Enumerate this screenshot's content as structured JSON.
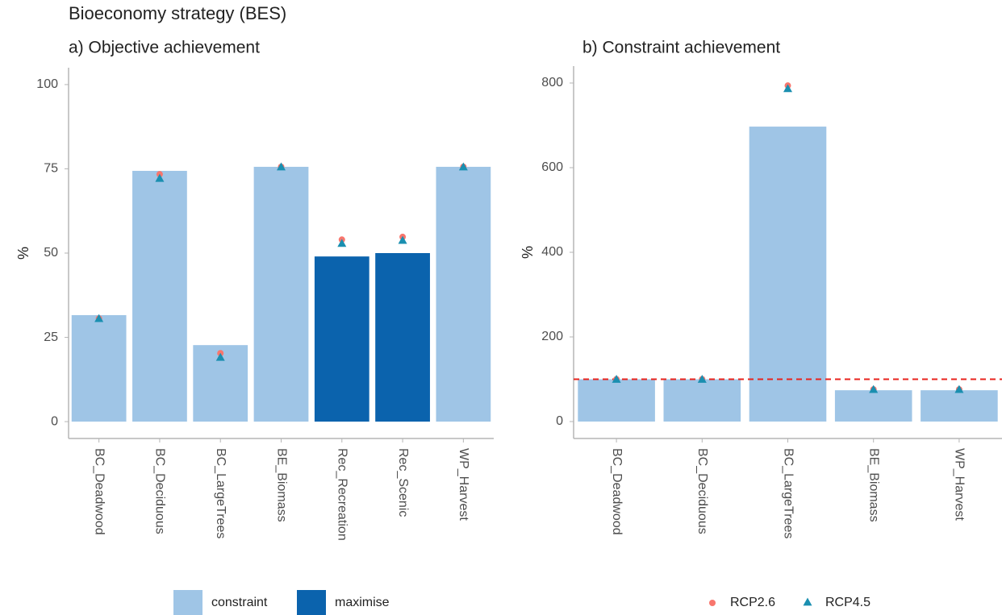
{
  "title": "Bioeconomy strategy (BES)",
  "chart_data": [
    {
      "type": "bar",
      "title": "a) Objective achievement",
      "ylabel": "%",
      "categories": [
        "BC_Deadwood",
        "BC_Deciduous",
        "BC_LargeTrees",
        "BE_Biomass",
        "Rec_Recreation",
        "Rec_Scenic",
        "WP_Harvest"
      ],
      "series": [
        {
          "name": "constraint",
          "color": "#9fc5e6",
          "values": [
            31.6,
            74.4,
            22.7,
            75.6,
            null,
            null,
            75.6
          ]
        },
        {
          "name": "maximise",
          "color": "#0b63ad",
          "values": [
            null,
            null,
            null,
            null,
            49,
            50,
            null
          ]
        }
      ],
      "points": [
        {
          "name": "RCP2.6",
          "color": "#f8766d",
          "marker": "circle",
          "values": [
            30.6,
            73.4,
            20.3,
            75.6,
            54,
            54.8,
            75.6
          ]
        },
        {
          "name": "RCP4.5",
          "color": "#1a8fb0",
          "marker": "triangle",
          "values": [
            30.6,
            72.2,
            19.1,
            75.6,
            52.9,
            53.8,
            75.6
          ]
        }
      ],
      "ylim": [
        -5,
        105
      ],
      "yticks": [
        0,
        25,
        50,
        75,
        100
      ],
      "grid": false,
      "legend": "series"
    },
    {
      "type": "bar",
      "title": "b) Constraint achievement",
      "ylabel": "%",
      "categories": [
        "BC_Deadwood",
        "BC_Deciduous",
        "BC_LargeTrees",
        "BE_Biomass",
        "WP_Harvest"
      ],
      "series": [
        {
          "color": "#9fc5e6",
          "values": [
            100,
            100,
            697,
            74,
            74
          ]
        }
      ],
      "points": [
        {
          "name": "RCP2.6",
          "color": "#f8766d",
          "marker": "circle",
          "values": [
            100,
            100,
            794,
            76,
            76
          ]
        },
        {
          "name": "RCP4.5",
          "color": "#1a8fb0",
          "marker": "triangle",
          "values": [
            100,
            100,
            787,
            76,
            76
          ]
        }
      ],
      "hline": {
        "value": 100,
        "color": "#e8231c"
      },
      "ylim": [
        -40,
        840
      ],
      "yticks": [
        0,
        200,
        400,
        600,
        800
      ],
      "grid": false,
      "legend": "points"
    }
  ]
}
